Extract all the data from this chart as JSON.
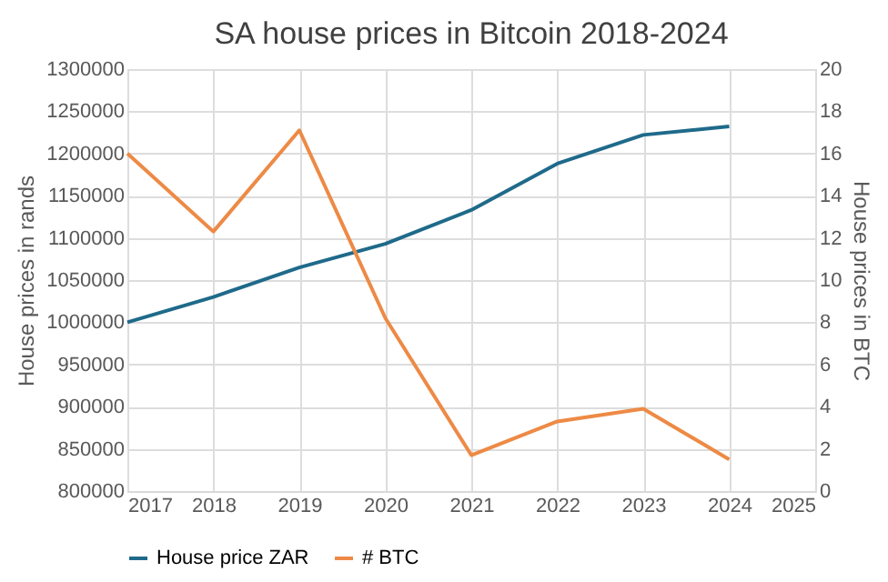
{
  "chart_data": {
    "type": "line",
    "title": "SA house prices in Bitcoin 2018-2024",
    "ylabel": "House prices in rands",
    "y2label": "House prices in BTC",
    "x": [
      2017,
      2018,
      2019,
      2020,
      2021,
      2022,
      2023,
      2024
    ],
    "series": [
      {
        "name": "House price ZAR",
        "color": "#1f6a8a",
        "values": [
          1000000,
          1030000,
          1065000,
          1093000,
          1133000,
          1188000,
          1222000,
          1232000
        ]
      },
      {
        "name": "# BTC",
        "color": "#ed8a45",
        "axis": "y2",
        "values": [
          16,
          12.3,
          17.1,
          8.2,
          1.7,
          3.3,
          3.9,
          1.5
        ]
      }
    ],
    "xlim": [
      2017,
      2025
    ],
    "xticks": [
      2017,
      2018,
      2019,
      2020,
      2021,
      2022,
      2023,
      2024,
      2025
    ],
    "ylim": [
      800000,
      1300000
    ],
    "yticks": [
      800000,
      850000,
      900000,
      950000,
      1000000,
      1050000,
      1100000,
      1150000,
      1200000,
      1250000,
      1300000
    ],
    "y2lim": [
      0,
      20
    ],
    "y2ticks": [
      0,
      2,
      4,
      6,
      8,
      10,
      12,
      14,
      16,
      18,
      20
    ],
    "grid": true,
    "legend": "bottom",
    "marker": "none",
    "line_style": "solid"
  }
}
